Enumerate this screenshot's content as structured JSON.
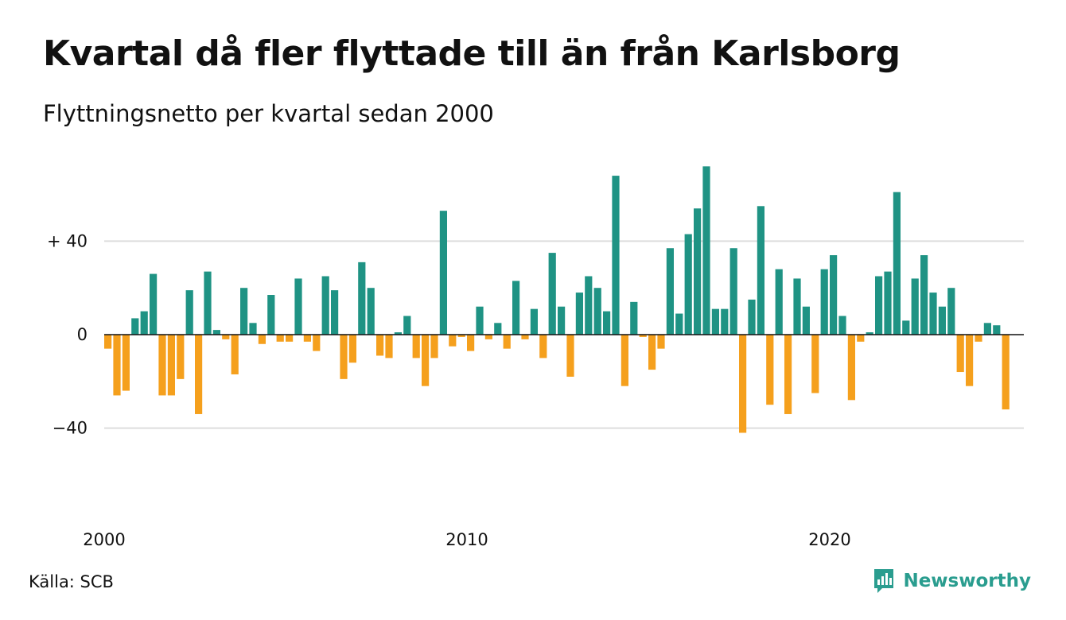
{
  "header": {
    "title": "Kvartal då fler flyttade till än från Karlsborg",
    "subtitle": "Flyttningsnetto per kvartal sedan 2000"
  },
  "footer": {
    "source": "Källa: SCB",
    "brand": "Newsworthy"
  },
  "colors": {
    "positive": "#1f9384",
    "negative": "#f5a01d",
    "grid": "#dddddd",
    "zero_line": "#111111",
    "brand": "#2a9d8f"
  },
  "icons": {
    "brand_logo": "newsworthy-logo-icon"
  },
  "chart_data": {
    "type": "bar",
    "title": "Kvartal då fler flyttade till än från Karlsborg",
    "subtitle": "Flyttningsnetto per kvartal sedan 2000",
    "x_start": "2000 Q1",
    "x_tick_labels": [
      {
        "label": "2000",
        "quarter_index": 0
      },
      {
        "label": "2010",
        "quarter_index": 40
      },
      {
        "label": "2020",
        "quarter_index": 80
      }
    ],
    "y_ticks": [
      {
        "value": 40,
        "label": "+ 40"
      },
      {
        "value": 0,
        "label": "0"
      },
      {
        "value": -40,
        "label": "−40"
      }
    ],
    "ylim": [
      -72,
      72
    ],
    "grid": true,
    "values": [
      -6,
      -26,
      -24,
      7,
      10,
      26,
      -26,
      -26,
      -19,
      19,
      -34,
      27,
      2,
      -2,
      -17,
      20,
      5,
      -4,
      17,
      -3,
      -3,
      24,
      -3,
      -7,
      25,
      19,
      -19,
      -12,
      31,
      20,
      -9,
      -10,
      1,
      8,
      -10,
      -22,
      -10,
      53,
      -5,
      -1,
      -7,
      12,
      -2,
      5,
      -6,
      23,
      -2,
      11,
      -10,
      35,
      12,
      -18,
      18,
      25,
      20,
      10,
      68,
      -22,
      14,
      -1,
      -15,
      -6,
      37,
      9,
      43,
      54,
      72,
      11,
      11,
      37,
      -42,
      15,
      55,
      -30,
      28,
      -34,
      24,
      12,
      -25,
      28,
      34,
      8,
      -28,
      -3,
      1,
      25,
      27,
      61,
      6,
      24,
      34,
      18,
      12,
      20,
      -16,
      -22,
      -3,
      5,
      4,
      -32
    ]
  }
}
